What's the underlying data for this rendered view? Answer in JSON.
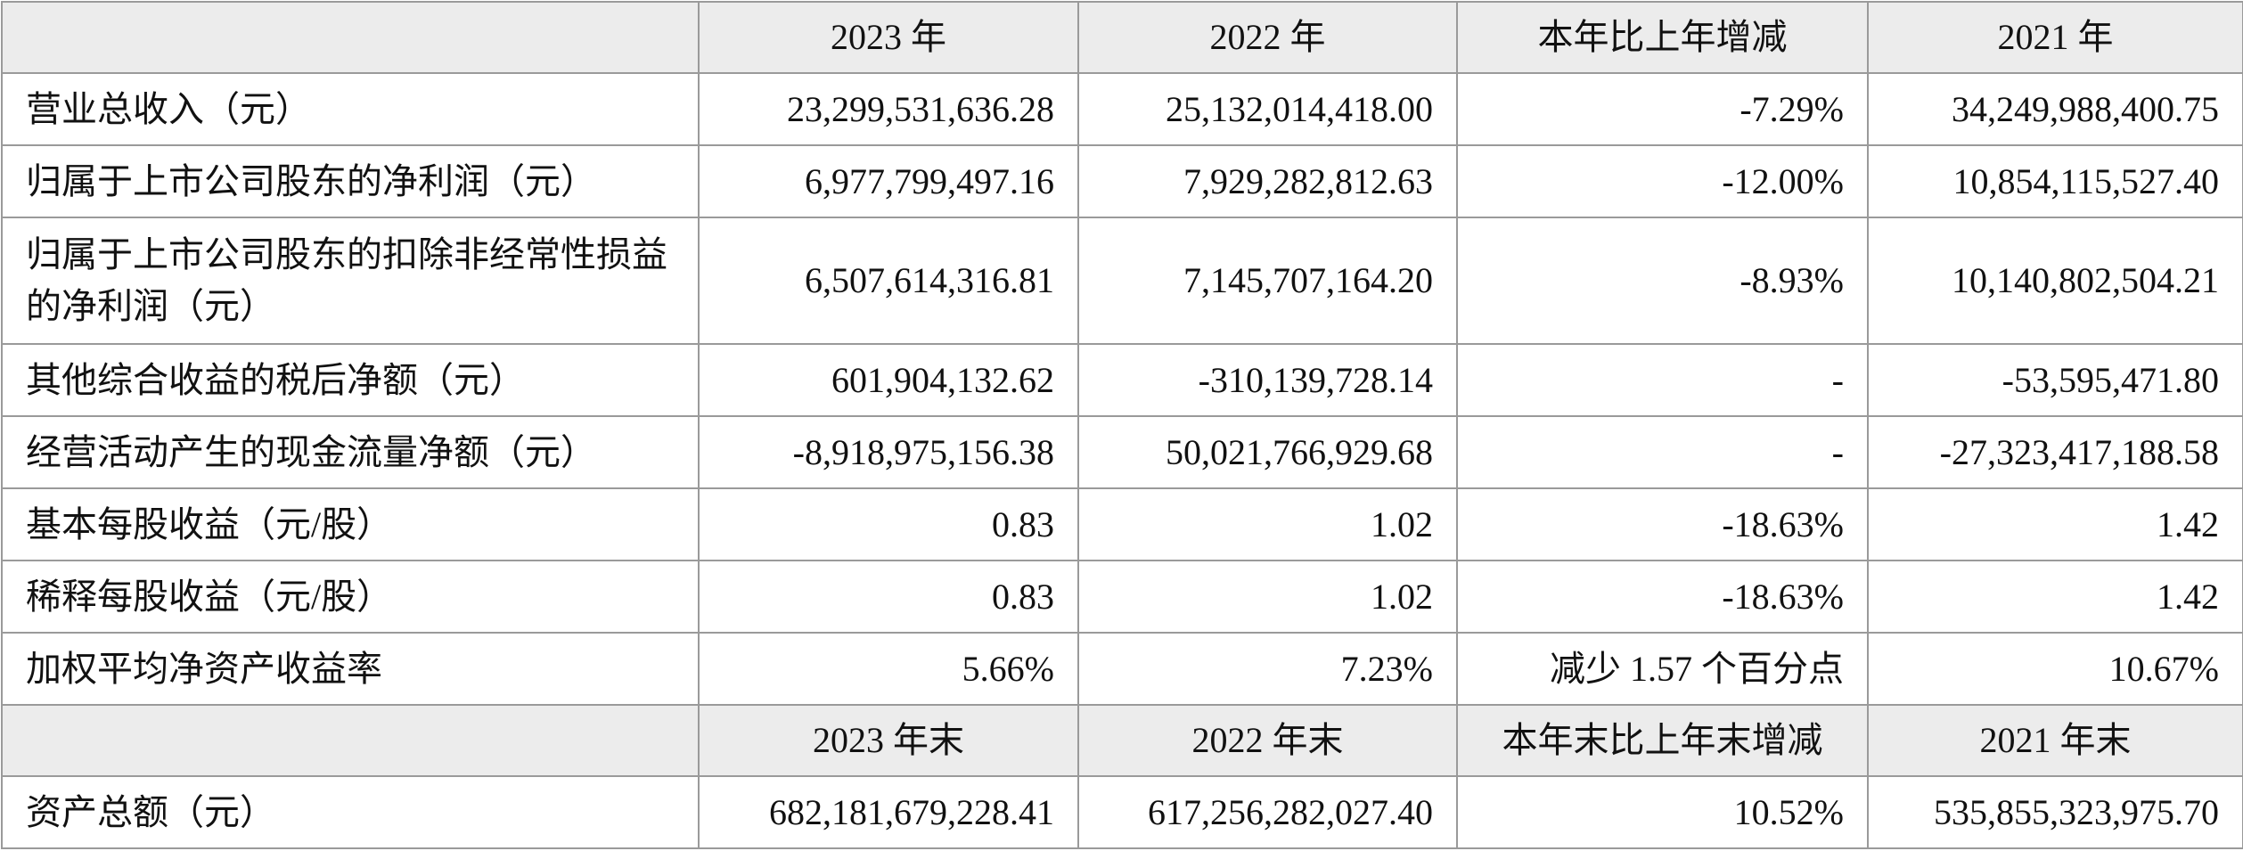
{
  "header": [
    "2023 年",
    "2022 年",
    "本年比上年增减",
    "2021 年"
  ],
  "rows": [
    {
      "label": "营业总收入（元）",
      "v2023": "23,299,531,636.28",
      "v2022": "25,132,014,418.00",
      "change": "-7.29%",
      "v2021": "34,249,988,400.75"
    },
    {
      "label": "归属于上市公司股东的净利润（元）",
      "v2023": "6,977,799,497.16",
      "v2022": "7,929,282,812.63",
      "change": "-12.00%",
      "v2021": "10,854,115,527.40"
    },
    {
      "label": "归属于上市公司股东的扣除非经常性损益的净利润（元）",
      "v2023": "6,507,614,316.81",
      "v2022": "7,145,707,164.20",
      "change": "-8.93%",
      "v2021": "10,140,802,504.21"
    },
    {
      "label": "其他综合收益的税后净额（元）",
      "v2023": "601,904,132.62",
      "v2022": "-310,139,728.14",
      "change": "-",
      "v2021": "-53,595,471.80"
    },
    {
      "label": "经营活动产生的现金流量净额（元）",
      "v2023": "-8,918,975,156.38",
      "v2022": "50,021,766,929.68",
      "change": "-",
      "v2021": "-27,323,417,188.58"
    },
    {
      "label": "基本每股收益（元/股）",
      "v2023": "0.83",
      "v2022": "1.02",
      "change": "-18.63%",
      "v2021": "1.42"
    },
    {
      "label": "稀释每股收益（元/股）",
      "v2023": "0.83",
      "v2022": "1.02",
      "change": "-18.63%",
      "v2021": "1.42"
    },
    {
      "label": "加权平均净资产收益率",
      "v2023": "5.66%",
      "v2022": "7.23%",
      "change": "减少 1.57 个百分点",
      "v2021": "10.67%"
    }
  ],
  "header2": [
    "2023 年末",
    "2022 年末",
    "本年末比上年末增减",
    "2021 年末"
  ],
  "rows2": [
    {
      "label": "资产总额（元）",
      "v2023": "682,181,679,228.41",
      "v2022": "617,256,282,027.40",
      "change": "10.52%",
      "v2021": "535,855,323,975.70"
    }
  ]
}
